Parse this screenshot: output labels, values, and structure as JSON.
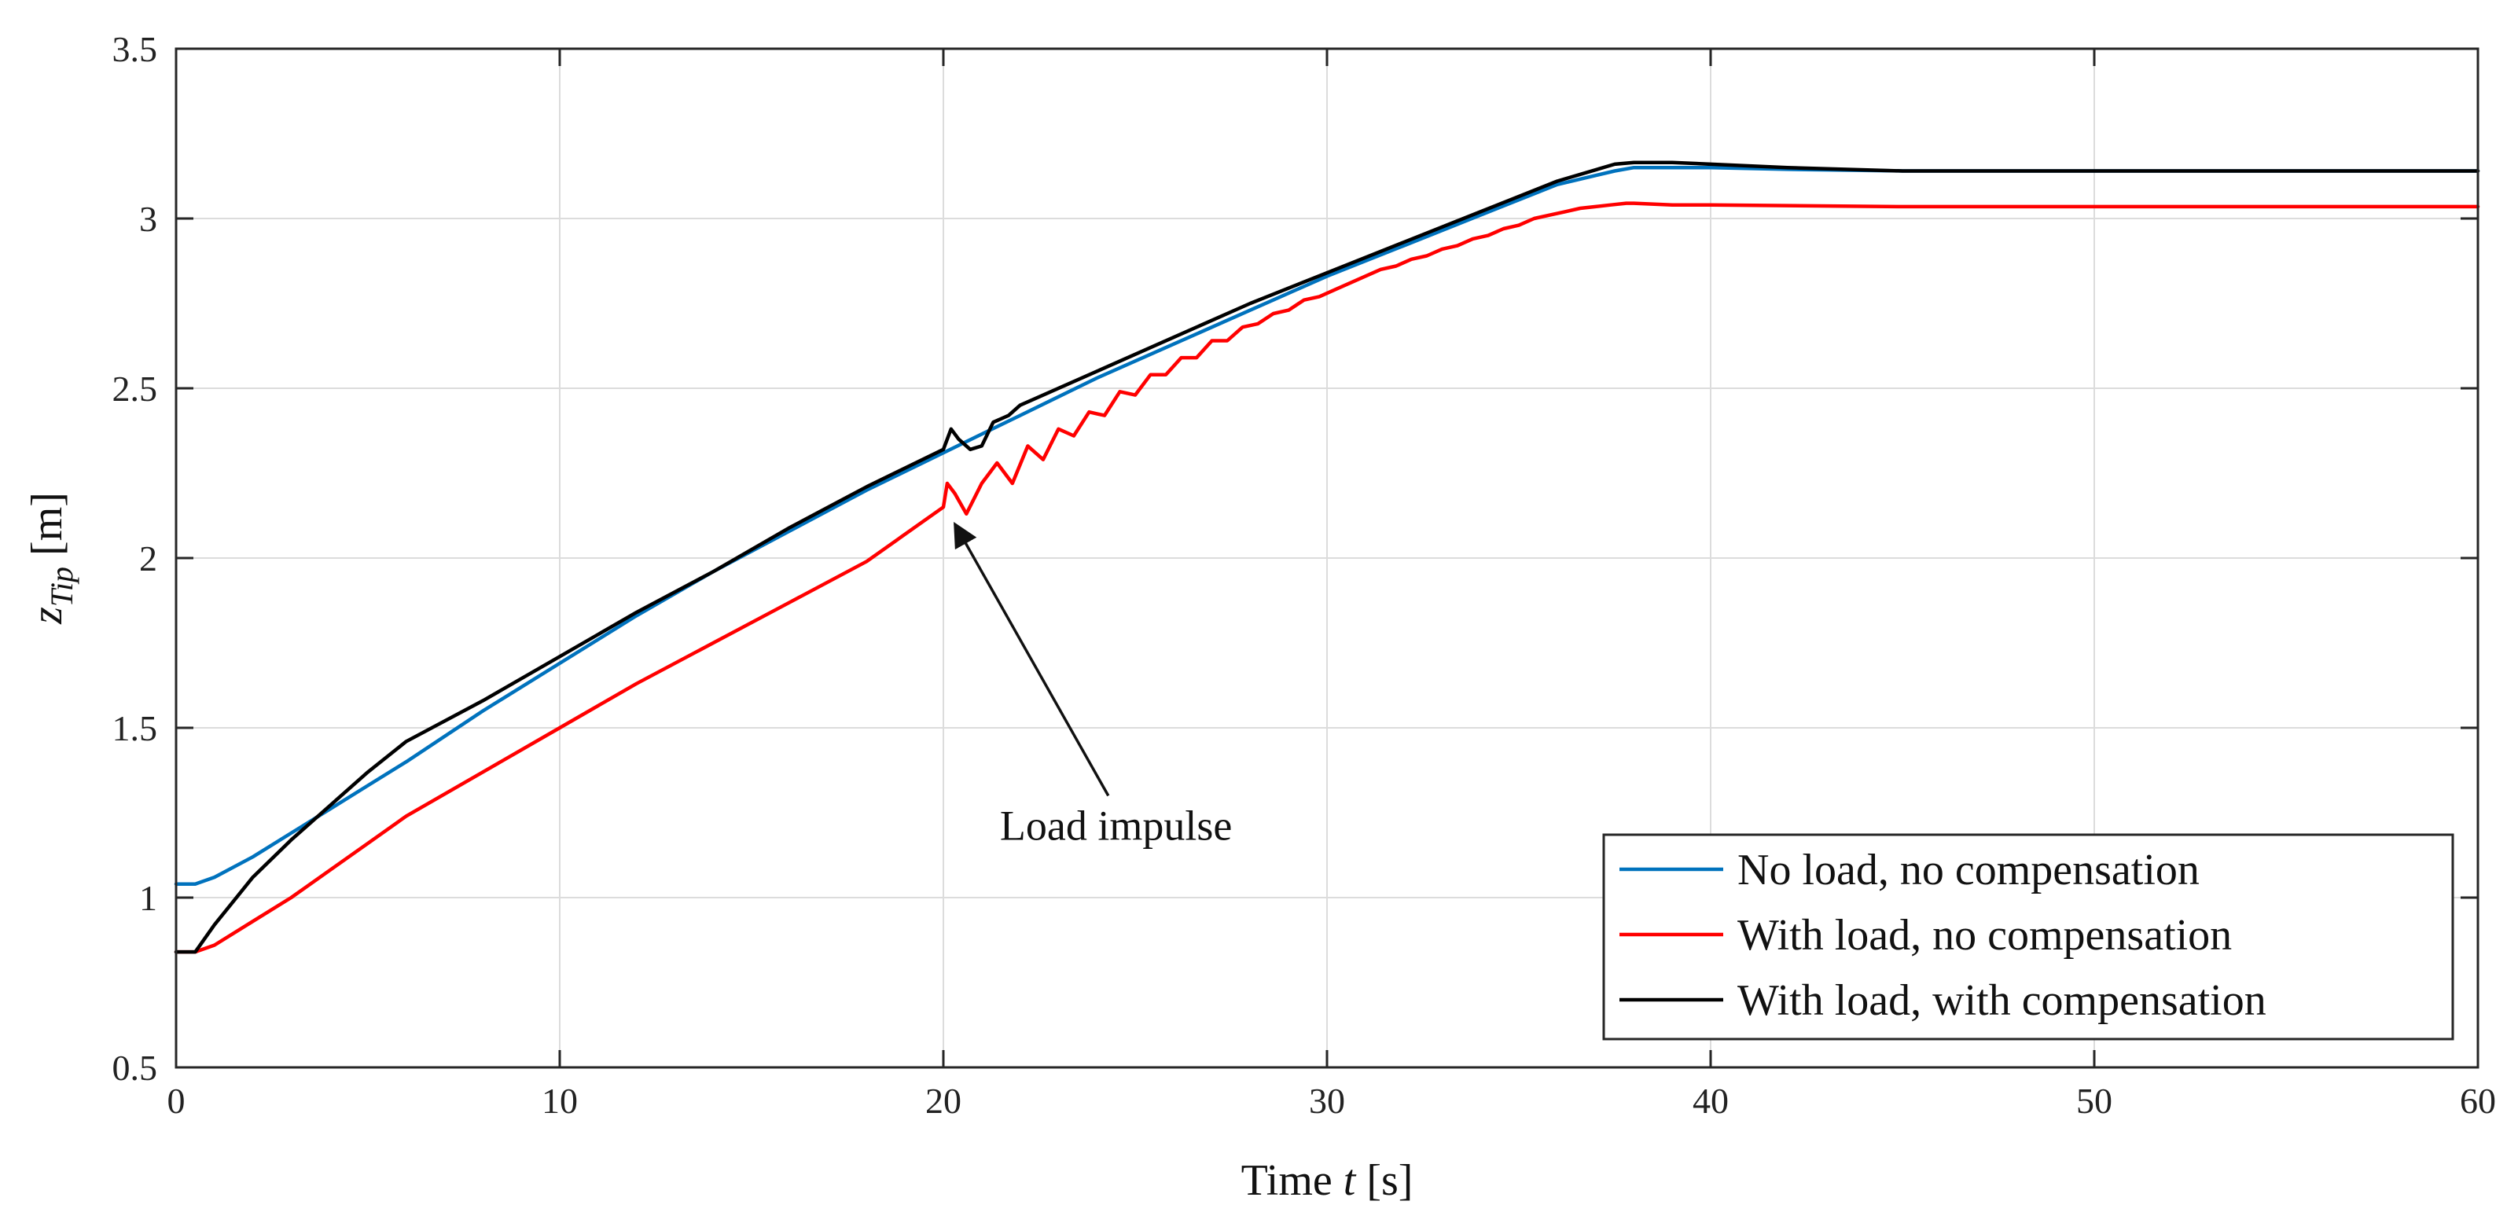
{
  "chart_data": {
    "type": "line",
    "title": "",
    "xlabel_prefix": "Time",
    "xlabel_var": "t",
    "xlabel_unit": "[s]",
    "ylabel_var": "z",
    "ylabel_sub": "Tip",
    "ylabel_unit": "[m]",
    "xlim": [
      0,
      60
    ],
    "ylim": [
      0.5,
      3.5
    ],
    "xticks": [
      0,
      10,
      20,
      30,
      40,
      50,
      60
    ],
    "xtick_labels": [
      "0",
      "10",
      "20",
      "30",
      "40",
      "50",
      "60"
    ],
    "yticks": [
      0.5,
      1,
      1.5,
      2,
      2.5,
      3,
      3.5
    ],
    "ytick_labels": [
      "0.5",
      "1",
      "1.5",
      "2",
      "2.5",
      "3",
      "3.5"
    ],
    "grid": true,
    "legend_position": "bottom-right",
    "series": [
      {
        "name": "No load, no compensation",
        "color": "#0072BD",
        "x": [
          0,
          0.5,
          1,
          2,
          3,
          4,
          5,
          6,
          8,
          10,
          12,
          14,
          16,
          18,
          20,
          22,
          24,
          26,
          28,
          30,
          32,
          34,
          36,
          37.5,
          38,
          39,
          40,
          42,
          45,
          50,
          55,
          60
        ],
        "y": [
          1.04,
          1.04,
          1.06,
          1.12,
          1.19,
          1.26,
          1.33,
          1.4,
          1.55,
          1.69,
          1.83,
          1.96,
          2.08,
          2.2,
          2.31,
          2.42,
          2.53,
          2.63,
          2.73,
          2.83,
          2.92,
          3.01,
          3.1,
          3.14,
          3.15,
          3.15,
          3.15,
          3.145,
          3.14,
          3.14,
          3.14,
          3.14
        ]
      },
      {
        "name": "With load, no compensation",
        "color": "#FF0000",
        "x": [
          0,
          0.5,
          1,
          2,
          3,
          4,
          5,
          6,
          8,
          10,
          12,
          14,
          16,
          18,
          20,
          20.1,
          20.3,
          20.6,
          21.0,
          21.4,
          21.8,
          22.2,
          22.6,
          23.0,
          23.4,
          23.8,
          24.2,
          24.6,
          25.0,
          25.4,
          25.8,
          26.2,
          26.6,
          27.0,
          27.4,
          27.8,
          28.2,
          28.6,
          29.0,
          29.4,
          29.8,
          30.2,
          30.6,
          31.0,
          31.4,
          31.8,
          32.2,
          32.6,
          33.0,
          33.4,
          33.8,
          34.2,
          34.6,
          35.0,
          35.4,
          35.8,
          36.2,
          36.6,
          37.0,
          37.4,
          37.8,
          38,
          39,
          40,
          45,
          50,
          55,
          60
        ],
        "y": [
          0.84,
          0.84,
          0.86,
          0.93,
          1.0,
          1.08,
          1.16,
          1.24,
          1.37,
          1.5,
          1.63,
          1.75,
          1.87,
          1.99,
          2.15,
          2.22,
          2.19,
          2.13,
          2.22,
          2.28,
          2.22,
          2.33,
          2.29,
          2.38,
          2.36,
          2.43,
          2.42,
          2.49,
          2.48,
          2.54,
          2.54,
          2.59,
          2.59,
          2.64,
          2.64,
          2.68,
          2.69,
          2.72,
          2.73,
          2.76,
          2.77,
          2.79,
          2.81,
          2.83,
          2.85,
          2.86,
          2.88,
          2.89,
          2.91,
          2.92,
          2.94,
          2.95,
          2.97,
          2.98,
          3.0,
          3.01,
          3.02,
          3.03,
          3.035,
          3.04,
          3.045,
          3.045,
          3.04,
          3.04,
          3.035,
          3.035,
          3.035,
          3.035
        ]
      },
      {
        "name": "With load, with compensation",
        "color": "#000000",
        "x": [
          0,
          0.5,
          1,
          2,
          3,
          4,
          5,
          6,
          8,
          10,
          12,
          14,
          16,
          18,
          20,
          20.2,
          20.4,
          20.7,
          21.0,
          21.3,
          21.7,
          22,
          24,
          26,
          28,
          30,
          32,
          34,
          36,
          37.5,
          38,
          39,
          40,
          42,
          45,
          50,
          55,
          60
        ],
        "y": [
          0.84,
          0.84,
          0.92,
          1.06,
          1.17,
          1.27,
          1.37,
          1.46,
          1.58,
          1.71,
          1.84,
          1.96,
          2.09,
          2.21,
          2.32,
          2.38,
          2.35,
          2.32,
          2.33,
          2.4,
          2.42,
          2.45,
          2.55,
          2.65,
          2.75,
          2.84,
          2.93,
          3.02,
          3.11,
          3.16,
          3.165,
          3.165,
          3.16,
          3.15,
          3.14,
          3.14,
          3.14,
          3.14
        ]
      }
    ],
    "annotations": [
      {
        "text": "Load impulse",
        "text_x": 24.5,
        "text_y": 1.17,
        "arrow_from_x": 24.3,
        "arrow_from_y": 1.3,
        "arrow_to_x": 20.3,
        "arrow_to_y": 2.1
      }
    ]
  }
}
